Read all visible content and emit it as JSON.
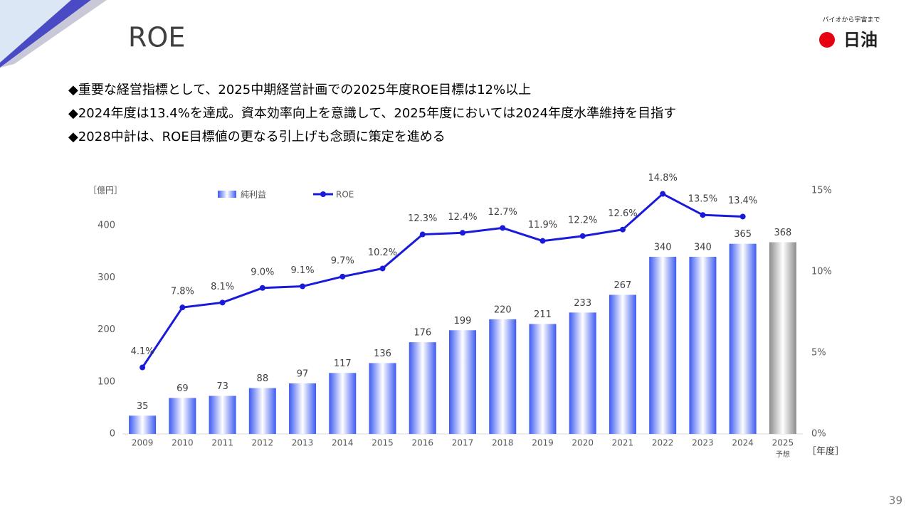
{
  "header": {
    "title": "ROE",
    "logo_tagline": "バイオから宇宙まで",
    "logo_name": "日油"
  },
  "bullets": [
    "◆重要な経営指標として、2025中期経営計画での2025年度ROE目標は12%以上",
    "◆2024年度は13.4%を達成。資本効率向上を意識して、2025年度においては2024年度水準維持を目指す",
    "◆2028中計は、ROE目標値の更なる引上げも念頭に策定を進める"
  ],
  "page_number": "39",
  "chart_data": {
    "type": "bar_line",
    "y_label": "［億円］",
    "x_label": "［年度］",
    "categories": [
      "2009",
      "2010",
      "2011",
      "2012",
      "2013",
      "2014",
      "2015",
      "2016",
      "2017",
      "2018",
      "2019",
      "2020",
      "2021",
      "2022",
      "2023",
      "2024",
      "2025"
    ],
    "x_sublabels": [
      null,
      null,
      null,
      null,
      null,
      null,
      null,
      null,
      null,
      null,
      null,
      null,
      null,
      null,
      null,
      null,
      "予想"
    ],
    "series": [
      {
        "name": "純利益",
        "type": "bar",
        "color": "#3d5af1",
        "forecast_color": "#8c8c8c",
        "values": [
          35,
          69,
          73,
          88,
          97,
          117,
          136,
          176,
          199,
          220,
          211,
          233,
          267,
          340,
          340,
          365,
          368
        ]
      },
      {
        "name": "ROE",
        "type": "line",
        "axis": "y2",
        "color": "#1a1adb",
        "values": [
          4.1,
          7.8,
          8.1,
          9.0,
          9.1,
          9.7,
          10.2,
          12.3,
          12.4,
          12.7,
          11.9,
          12.2,
          12.6,
          14.8,
          13.5,
          13.4,
          null
        ],
        "value_labels": [
          "4.1%",
          "7.8%",
          "8.1%",
          "9.0%",
          "9.1%",
          "9.7%",
          "10.2%",
          "12.3%",
          "12.4%",
          "12.7%",
          "11.9%",
          "12.2%",
          "12.6%",
          "14.8%",
          "13.5%",
          "13.4%",
          null
        ]
      }
    ],
    "ylim": [
      0,
      467
    ],
    "yticks": [
      0,
      100,
      200,
      300,
      400
    ],
    "y2lim": [
      0,
      15
    ],
    "y2ticks": [
      {
        "value": 0,
        "label": "0%"
      },
      {
        "value": 5,
        "label": "5%"
      },
      {
        "value": 10,
        "label": "10%"
      },
      {
        "value": 15,
        "label": "15%"
      }
    ]
  }
}
